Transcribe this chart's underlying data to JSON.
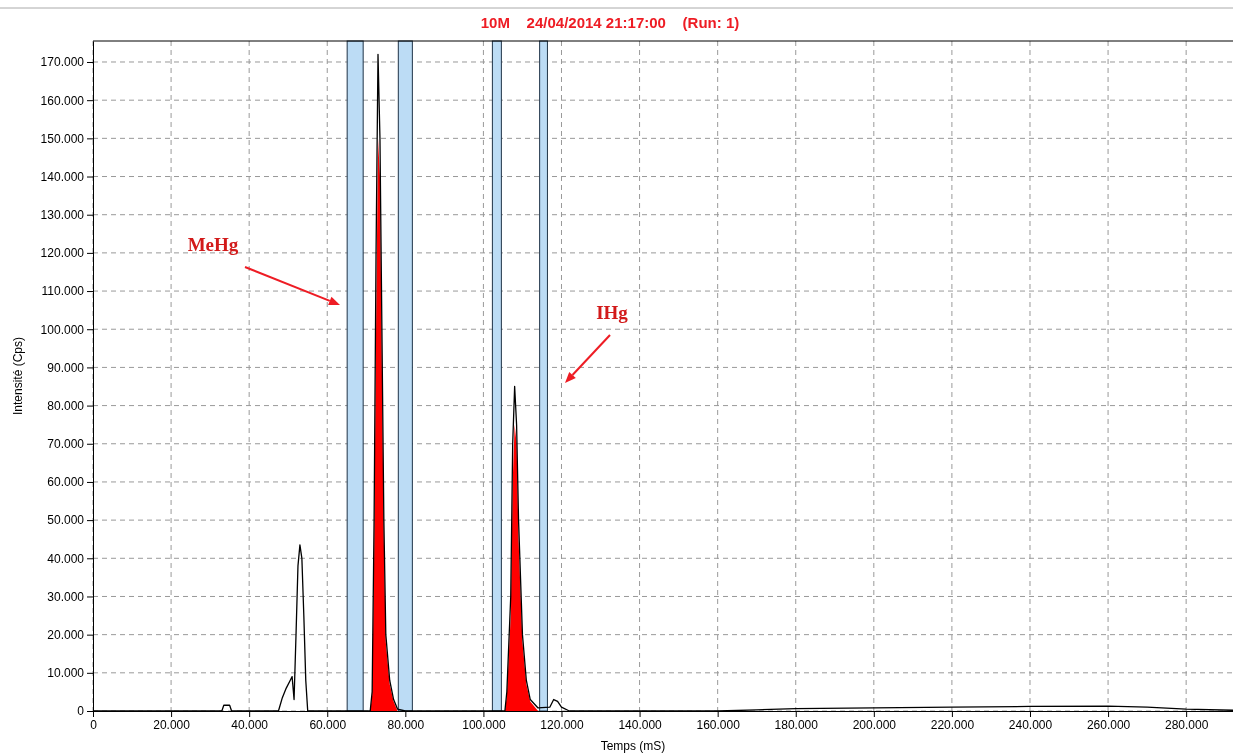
{
  "chart_data": {
    "type": "line",
    "title": "10M    24/04/2014 21:17:00    (Run: 1)",
    "xlabel": "Temps (mS)",
    "ylabel": "Intensité (Cps)",
    "xlim": [
      0,
      292000
    ],
    "ylim": [
      0,
      175500
    ],
    "xticks": [
      0,
      {
        "value": 20000,
        "label": "20.000"
      },
      {
        "value": 40000,
        "label": "40.000"
      },
      {
        "value": 60000,
        "label": "60.000"
      },
      {
        "value": 80000,
        "label": "80.000"
      },
      {
        "value": 100000,
        "label": "100.000"
      },
      {
        "value": 120000,
        "label": "120.000"
      },
      {
        "value": 140000,
        "label": "140.000"
      },
      {
        "value": 160000,
        "label": "160.000"
      },
      {
        "value": 180000,
        "label": "180.000"
      },
      {
        "value": 200000,
        "label": "200.000"
      },
      {
        "value": 220000,
        "label": "220.000"
      },
      {
        "value": 240000,
        "label": "240.000"
      },
      {
        "value": 260000,
        "label": "260.000"
      },
      {
        "value": 280000,
        "label": "280.000"
      }
    ],
    "yticks": [
      0,
      {
        "value": 10000,
        "label": "10.000"
      },
      {
        "value": 20000,
        "label": "20.000"
      },
      {
        "value": 30000,
        "label": "30.000"
      },
      {
        "value": 40000,
        "label": "40.000"
      },
      {
        "value": 50000,
        "label": "50.000"
      },
      {
        "value": 60000,
        "label": "60.000"
      },
      {
        "value": 70000,
        "label": "70.000"
      },
      {
        "value": 80000,
        "label": "80.000"
      },
      {
        "value": 90000,
        "label": "90.000"
      },
      {
        "value": 100000,
        "label": "100.000"
      },
      {
        "value": 110000,
        "label": "110.000"
      },
      {
        "value": 120000,
        "label": "120.000"
      },
      {
        "value": 130000,
        "label": "130.000"
      },
      {
        "value": 140000,
        "label": "140.000"
      },
      {
        "value": 150000,
        "label": "150.000"
      },
      {
        "value": 160000,
        "label": "160.000"
      },
      {
        "value": 170000,
        "label": "170.000"
      }
    ],
    "grid": true,
    "line_style": "solid",
    "bands": [
      {
        "axis": "x",
        "from": 65100,
        "to": 69200,
        "color": "#bcdcf5"
      },
      {
        "axis": "x",
        "from": 78200,
        "to": 81800,
        "color": "#bcdcf5"
      },
      {
        "axis": "x",
        "from": 102300,
        "to": 104600,
        "color": "#bcdcf5"
      },
      {
        "axis": "x",
        "from": 114400,
        "to": 116400,
        "color": "#bcdcf5"
      }
    ],
    "series": [
      {
        "type": "area",
        "color": "#ff0000",
        "x": [
          71000,
          71500,
          72000,
          72500,
          73000,
          73500,
          74000,
          74500,
          75000,
          76000,
          77000,
          78000,
          90000,
          105500,
          106000,
          107000,
          107500,
          108000,
          108500,
          109000,
          110000,
          111000,
          112000,
          114000
        ],
        "values": [
          0,
          4000,
          40000,
          100000,
          150000,
          140000,
          90000,
          45000,
          18000,
          7000,
          2500,
          0,
          null,
          0,
          4000,
          25000,
          60000,
          75000,
          70000,
          45000,
          18000,
          7000,
          2500,
          0
        ]
      },
      {
        "color": "#000000",
        "x": [
          0,
          33000,
          33500,
          35000,
          35500,
          47500,
          48500,
          49500,
          50500,
          51000,
          51500,
          52000,
          52500,
          53000,
          53500,
          54000,
          54500,
          55000,
          71000,
          71500,
          72000,
          72500,
          73000,
          73500,
          74000,
          74500,
          75000,
          76000,
          77000,
          78000,
          80000,
          105500,
          106000,
          107000,
          107500,
          108000,
          108500,
          109000,
          110000,
          111000,
          112000,
          114000,
          117000,
          118000,
          119000,
          120000,
          122000,
          160000,
          170000,
          180000,
          200000,
          220000,
          240000,
          260000,
          270000,
          280000,
          292000
        ],
        "values": [
          0,
          0,
          1500,
          1500,
          0,
          0,
          3500,
          6000,
          8000,
          9000,
          3000,
          20000,
          38000,
          43500,
          40000,
          25000,
          8000,
          0,
          0,
          5000,
          50000,
          120000,
          172000,
          150000,
          100000,
          50000,
          20000,
          8000,
          3000,
          500,
          0,
          0,
          5000,
          30000,
          70000,
          85000,
          75000,
          50000,
          20000,
          8000,
          3000,
          800,
          1000,
          3000,
          2500,
          1000,
          0,
          0,
          300,
          600,
          800,
          1000,
          1200,
          1300,
          1000,
          500,
          200
        ]
      }
    ],
    "annotations": [
      "MeHg",
      "IHg"
    ]
  }
}
